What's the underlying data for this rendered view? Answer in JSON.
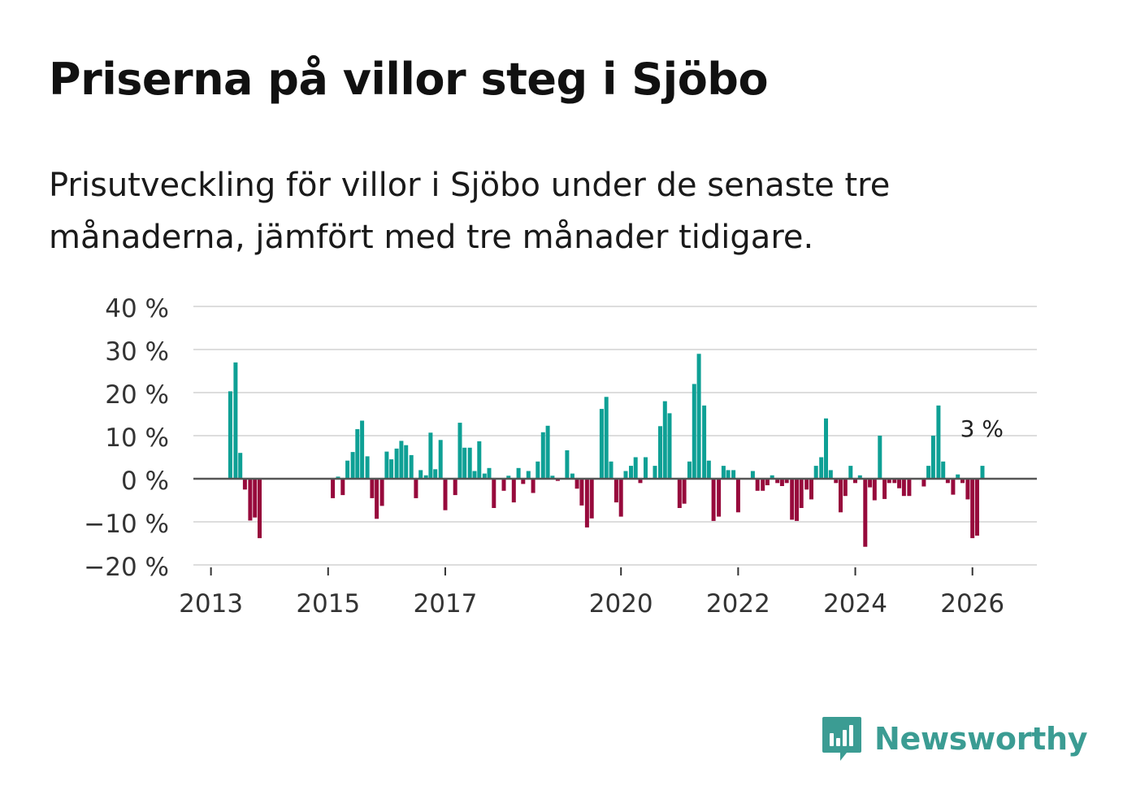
{
  "title": "Priserna på villor steg i Sjöbo",
  "subtitle": "Prisutveckling för villor i Sjöbo under de senaste tre månaderna, jämfört med tre månader tidigare.",
  "brand": {
    "name": "Newsworthy",
    "color": "#3b9c93",
    "icon": "newsworthy-chart-bubble-icon"
  },
  "colors": {
    "positive": "#0ea095",
    "negative": "#970a3c",
    "grid": "#dddddd",
    "zero_line": "#555555",
    "axis_text": "#333333"
  },
  "chart_data": {
    "type": "bar",
    "title": "Priserna på villor steg i Sjöbo",
    "xlabel": "",
    "ylabel": "",
    "ylim": [
      -20,
      40
    ],
    "yticks": [
      40,
      30,
      20,
      10,
      0,
      -10,
      -20
    ],
    "ytick_labels": [
      "40 %",
      "30 %",
      "20 %",
      "10 %",
      "0 %",
      "−10 %",
      "−20 %"
    ],
    "x_domain": [
      2012.7,
      2027.1
    ],
    "xticks": [
      2013,
      2015,
      2017,
      2020,
      2022,
      2024,
      2026
    ],
    "xtick_labels": [
      "2013",
      "2015",
      "2017",
      "2020",
      "2022",
      "2024",
      "2026"
    ],
    "annotation": {
      "text": "3 %",
      "x": 2026.17,
      "y": 3
    },
    "series": [
      {
        "name": "Prisutveckling",
        "x": [
          2013.33,
          2013.42,
          2013.5,
          2013.58,
          2013.67,
          2013.75,
          2013.83,
          2015.08,
          2015.17,
          2015.25,
          2015.33,
          2015.42,
          2015.5,
          2015.58,
          2015.67,
          2015.75,
          2015.83,
          2015.92,
          2016.0,
          2016.08,
          2016.17,
          2016.25,
          2016.33,
          2016.42,
          2016.5,
          2016.58,
          2016.67,
          2016.75,
          2016.83,
          2016.92,
          2017.0,
          2017.08,
          2017.17,
          2017.25,
          2017.33,
          2017.42,
          2017.5,
          2017.58,
          2017.67,
          2017.75,
          2017.83,
          2017.92,
          2018.0,
          2018.08,
          2018.17,
          2018.25,
          2018.33,
          2018.42,
          2018.5,
          2018.58,
          2018.67,
          2018.75,
          2018.83,
          2018.92,
          2019.0,
          2019.08,
          2019.17,
          2019.25,
          2019.33,
          2019.42,
          2019.5,
          2019.58,
          2019.67,
          2019.75,
          2019.83,
          2019.92,
          2020.0,
          2020.08,
          2020.17,
          2020.25,
          2020.33,
          2020.42,
          2020.5,
          2020.58,
          2020.67,
          2020.75,
          2020.83,
          2020.92,
          2021.0,
          2021.08,
          2021.17,
          2021.25,
          2021.33,
          2021.42,
          2021.5,
          2021.58,
          2021.67,
          2021.75,
          2021.83,
          2021.92,
          2022.0,
          2022.08,
          2022.17,
          2022.25,
          2022.33,
          2022.42,
          2022.5,
          2022.58,
          2022.67,
          2022.75,
          2022.83,
          2022.92,
          2023.0,
          2023.08,
          2023.17,
          2023.25,
          2023.33,
          2023.42,
          2023.5,
          2023.58,
          2023.67,
          2023.75,
          2023.83,
          2023.92,
          2024.0,
          2024.08,
          2024.17,
          2024.25,
          2024.33,
          2024.42,
          2024.5,
          2024.58,
          2024.67,
          2024.75,
          2024.83,
          2024.92,
          2025.0,
          2025.08,
          2025.17,
          2025.25,
          2025.33,
          2025.42,
          2025.5,
          2025.58,
          2025.67,
          2025.75,
          2025.83,
          2025.92,
          2026.0,
          2026.08,
          2026.17
        ],
        "values": [
          20.3,
          27,
          6,
          -2.5,
          -9.7,
          -9,
          -13.8,
          -4.5,
          0.5,
          -3.8,
          4.2,
          6.2,
          11.5,
          13.5,
          5.2,
          -4.5,
          -9.3,
          -6.3,
          6.3,
          4.5,
          7,
          8.8,
          7.8,
          5.5,
          -4.5,
          2,
          0.8,
          10.7,
          2.2,
          9,
          -7.3,
          0,
          -3.8,
          13,
          7.2,
          7.2,
          1.8,
          8.7,
          1.2,
          2.5,
          -6.8,
          0,
          -2.8,
          0.7,
          -5.5,
          2.5,
          -1.2,
          1.8,
          -3.3,
          4,
          10.8,
          12.3,
          0.7,
          -0.5,
          0,
          6.6,
          1.2,
          -2.3,
          -6.2,
          -11.3,
          -9.2,
          0,
          16.2,
          19,
          4,
          -5.5,
          -8.8,
          1.8,
          3,
          5,
          -1,
          5,
          0,
          3,
          12.2,
          18,
          15.2,
          0,
          -6.8,
          -5.8,
          4,
          22,
          29,
          17,
          4.2,
          -9.8,
          -8.8,
          3,
          2,
          2,
          -7.8,
          0,
          0,
          1.8,
          -2.8,
          -2.8,
          -1.5,
          0.8,
          -1,
          -1.7,
          -1,
          -9.5,
          -9.8,
          -6.8,
          -2.5,
          -4.8,
          3,
          5,
          14,
          2,
          -1,
          -7.8,
          -4,
          3,
          -1,
          0.8,
          -15.8,
          -2,
          -5,
          10,
          -4.7,
          -1,
          -1,
          -2.2,
          -4,
          -4,
          0,
          0,
          -1.8,
          3,
          10,
          17,
          4,
          -1,
          -3.7,
          1,
          -1,
          -4.8,
          -13.8,
          -13.2,
          3
        ]
      }
    ]
  }
}
